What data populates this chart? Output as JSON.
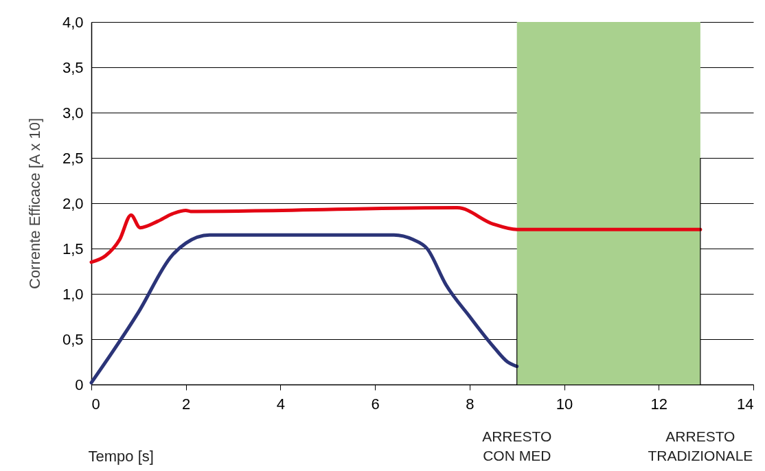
{
  "chart_data": {
    "type": "line",
    "xlabel": "Tempo [s]",
    "ylabel": "Corrente Efficace [A x 10]",
    "xlim": [
      0,
      14
    ],
    "xticks": [
      0,
      2,
      4,
      6,
      8,
      10,
      12,
      14
    ],
    "ylim": [
      0,
      4
    ],
    "yticks": [
      0,
      {
        "value": 0.5,
        "label": "0,5"
      },
      {
        "value": 1,
        "label": "1,0"
      },
      {
        "value": 1.5,
        "label": "1,5"
      },
      {
        "value": 2,
        "label": "2,0"
      },
      {
        "value": 2.5,
        "label": "2,5"
      },
      {
        "value": 3,
        "label": "3,0"
      },
      {
        "value": 3.5,
        "label": "3,5"
      },
      {
        "value": 4,
        "label": "4,0"
      }
    ],
    "grid": "y",
    "line_style": "solid",
    "marker": "none",
    "series": [
      {
        "color": "#e30613",
        "x": [
          0,
          0.3,
          0.6,
          0.84,
          1.03,
          1.4,
          1.7,
          2.0,
          2.1,
          7.74,
          8.5,
          9.0,
          12.88
        ],
        "values": [
          1.35,
          1.42,
          1.6,
          1.87,
          1.73,
          1.8,
          1.88,
          1.92,
          1.91,
          1.95,
          1.77,
          1.71,
          1.71
        ]
      },
      {
        "color": "#2b3478",
        "x": [
          0,
          1.0,
          1.7,
          2.0,
          2.5,
          6.4,
          6.8,
          7.1,
          7.5,
          8.0,
          8.5,
          8.8,
          9.0
        ],
        "values": [
          0.02,
          0.8,
          1.42,
          1.56,
          1.65,
          1.65,
          1.6,
          1.5,
          1.1,
          0.75,
          0.42,
          0.25,
          0.2
        ]
      },
      {
        "color": "#000000",
        "x": [
          9,
          9
        ],
        "values": [
          0,
          1.0
        ]
      },
      {
        "color": "#000000",
        "x": [
          12.88,
          12.88
        ],
        "values": [
          0,
          2.5
        ]
      }
    ],
    "bands": [
      {
        "axis": "x",
        "from": 9,
        "to": 12.88,
        "color": "#a9d18e"
      }
    ],
    "annotations": [
      "ARRESTO\nCON MED",
      "ARRESTO\nTRADIZIONALE"
    ]
  }
}
